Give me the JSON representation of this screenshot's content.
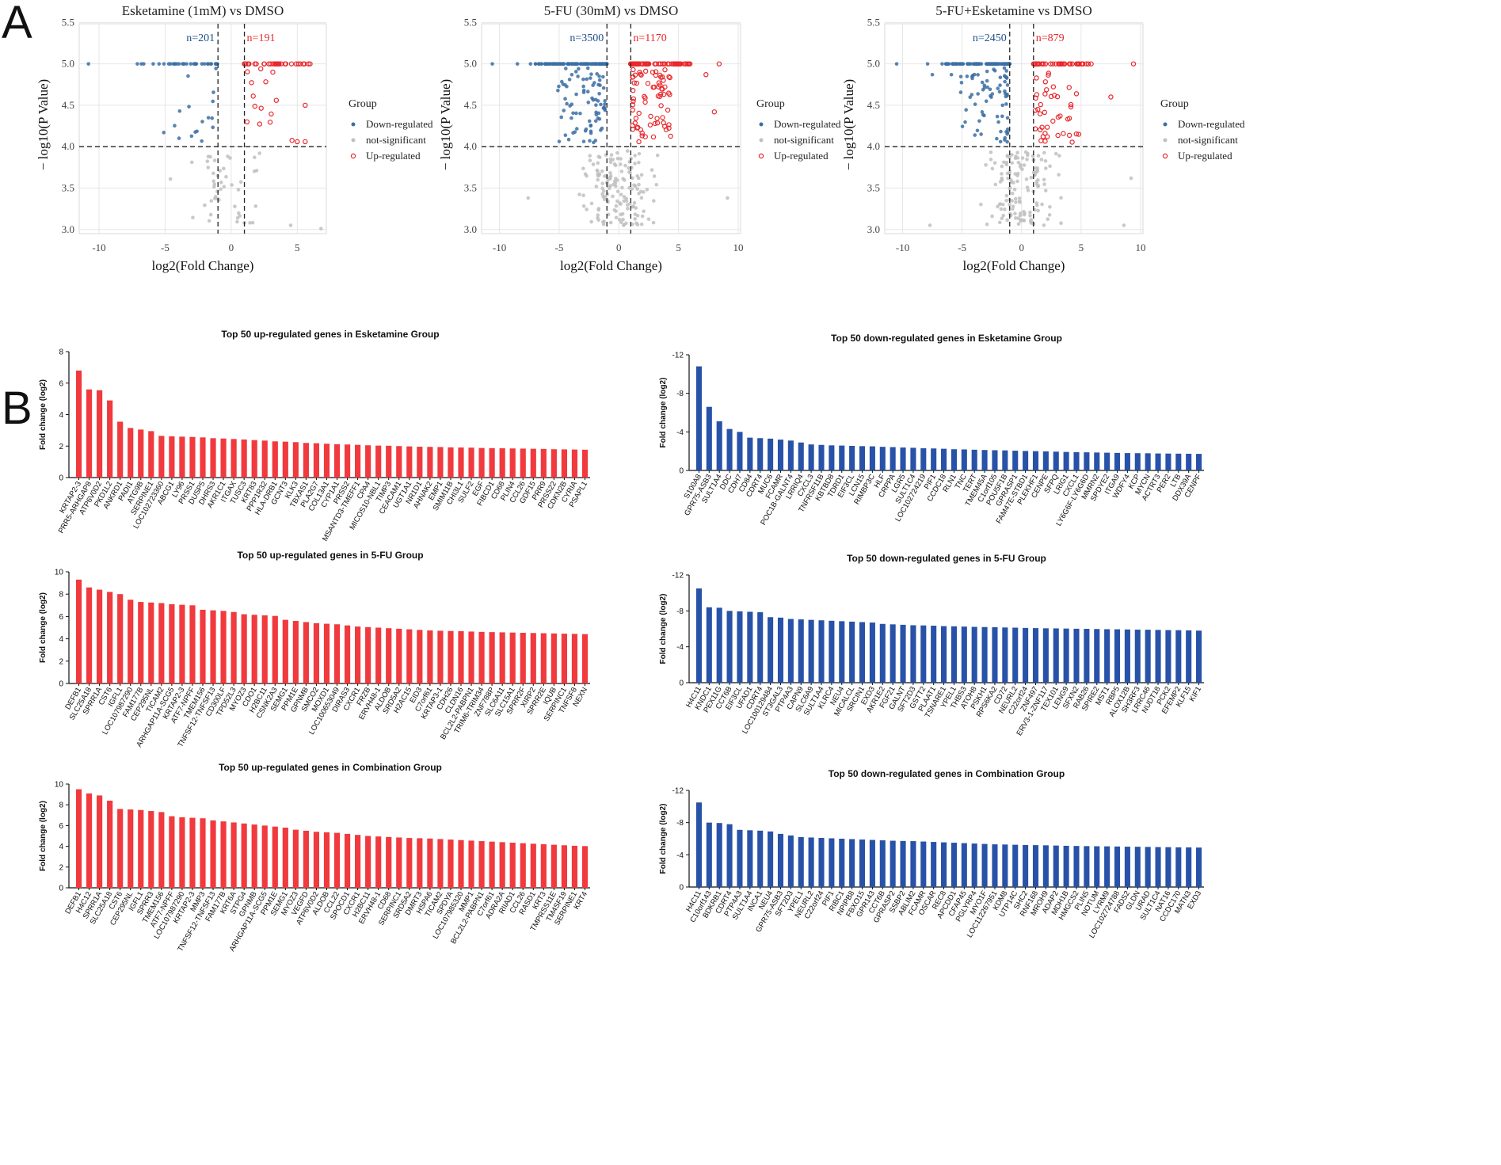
{
  "panels": {
    "a_label": "A",
    "b_label": "B"
  },
  "legend": {
    "title": "Group",
    "down": "Down-regulated",
    "ns": "not-significant",
    "up": "Up-regulated"
  },
  "colors": {
    "down": "#3b6fa3",
    "ns": "#c0c0c0",
    "up": "#e8282c",
    "bar_up": "#f03a3e",
    "bar_down": "#2752a8"
  },
  "chart_data": [
    {
      "type": "scatter",
      "title": "Esketamine (1mM) vs DMSO",
      "xlabel": "log2(Fold Change)",
      "ylabel": "− log10(P Value)",
      "xlim": [
        -11.5,
        7.2
      ],
      "ylim": [
        2.95,
        5.58
      ],
      "xticks": [
        -10,
        -5,
        0,
        5
      ],
      "yticks": [
        3.0,
        3.5,
        4.0,
        4.5,
        5.0,
        5.5
      ],
      "fc_threshold": [
        -1,
        1
      ],
      "p_threshold": 4.0,
      "n_down_label": "n=201",
      "n_up_label": "n=191",
      "seed": 11,
      "down_tail": [
        [
          -10.8,
          5.0
        ],
        [
          -7.1,
          5.0
        ],
        [
          -5.9,
          5.0
        ],
        [
          -3.9,
          4.43
        ]
      ],
      "up_tail": [
        [
          5.6,
          4.5
        ],
        [
          5.0,
          4.06
        ],
        [
          5.6,
          4.06
        ],
        [
          3.4,
          5.0
        ]
      ],
      "ns_points": [
        [
          -4.6,
          3.61
        ],
        [
          6.8,
          3.01
        ],
        [
          4.5,
          3.05
        ]
      ],
      "n_draw": {
        "down_line": 32,
        "up_line": 34,
        "down_scatter": 16,
        "up_scatter": 14,
        "ns": 45
      }
    },
    {
      "type": "scatter",
      "title": "5-FU (30mM) vs DMSO",
      "xlabel": "log2(Fold Change)",
      "ylabel": "− log10(P Value)",
      "xlim": [
        -11.5,
        10.2
      ],
      "ylim": [
        2.95,
        5.58
      ],
      "xticks": [
        -10,
        -5,
        0,
        5,
        10
      ],
      "yticks": [
        3.0,
        3.5,
        4.0,
        4.5,
        5.0,
        5.5
      ],
      "fc_threshold": [
        -1,
        1
      ],
      "p_threshold": 4.0,
      "n_down_label": "n=3500",
      "n_up_label": "n=1170",
      "seed": 23,
      "down_tail": [
        [
          -10.6,
          5.0
        ],
        [
          -8.5,
          5.0
        ],
        [
          -7.4,
          5.0
        ]
      ],
      "up_tail": [
        [
          8.4,
          5.0
        ],
        [
          8.0,
          4.42
        ],
        [
          7.3,
          4.87
        ]
      ],
      "ns_points": [
        [
          9.1,
          3.38
        ],
        [
          -7.6,
          3.38
        ]
      ],
      "n_draw": {
        "down_line": 110,
        "up_line": 75,
        "down_scatter": 80,
        "up_scatter": 70,
        "ns": 150
      }
    },
    {
      "type": "scatter",
      "title": "5-FU+Esketamine vs DMSO",
      "xlabel": "log2(Fold Change)",
      "ylabel": "− log10(P Value)",
      "xlim": [
        -11.5,
        10.2
      ],
      "ylim": [
        2.95,
        5.58
      ],
      "xticks": [
        -10,
        -5,
        0,
        5,
        10
      ],
      "yticks": [
        3.0,
        3.5,
        4.0,
        4.5,
        5.0,
        5.5
      ],
      "fc_threshold": [
        -1,
        1
      ],
      "p_threshold": 4.0,
      "n_down_label": "n=2450",
      "n_up_label": "n=879",
      "seed": 37,
      "down_tail": [
        [
          -10.5,
          5.0
        ],
        [
          -7.9,
          5.0
        ],
        [
          -7.5,
          4.87
        ],
        [
          -5.9,
          4.87
        ]
      ],
      "up_tail": [
        [
          9.4,
          5.0
        ],
        [
          7.5,
          4.6
        ],
        [
          4.8,
          4.15
        ]
      ],
      "ns_points": [
        [
          9.2,
          3.62
        ],
        [
          8.6,
          3.05
        ],
        [
          -7.7,
          3.05
        ]
      ],
      "n_draw": {
        "down_line": 100,
        "up_line": 50,
        "down_scatter": 70,
        "up_scatter": 40,
        "ns": 140
      }
    },
    {
      "type": "bar",
      "direction": "up",
      "title": "Top 50 up-regulated genes in Esketamine Group",
      "ylabel": "Fold change (log2)",
      "ylim": [
        0,
        8
      ],
      "yticks": [
        0,
        2,
        4,
        6,
        8
      ],
      "tick_labels": [
        "0",
        "2",
        "4",
        "6",
        "8"
      ],
      "categories": [
        "KRTAP2-3",
        "PRR5-ARHGAP8",
        "ATP6V0D2",
        "PKD1L2",
        "ANKRD1",
        "PADI1",
        "ATG9B",
        "SERPINE1",
        "LOC102723360",
        "ABCG1",
        "LY96",
        "PRSS1",
        "DUSP5",
        "DHRS3",
        "AKR1C1",
        "ITGAX",
        "TUSC3",
        "KRT83",
        "PPP1R32",
        "HLA-DRB1",
        "GCNT3",
        "KLK3",
        "TBXAS1",
        "PLA2G7",
        "COL13A1",
        "CYP1A1",
        "PRSS2",
        "MSANTD3-TMEFF1",
        "CPA4",
        "MICOS10-NBL1",
        "TIMP3",
        "CEACAM1",
        "UGT1A1",
        "NR1D1",
        "AHNAK2",
        "EMP1",
        "SMIM11B",
        "CHI3L1",
        "SULF2",
        "EGF",
        "FIBCD1",
        "CD68",
        "PLIN4",
        "CCL26",
        "GDF15",
        "PRR9",
        "PRSS22",
        "CDKN2B",
        "CYRIA",
        "PSAPL1"
      ],
      "values": [
        6.8,
        5.6,
        5.55,
        4.9,
        3.55,
        3.15,
        3.05,
        2.95,
        2.65,
        2.62,
        2.6,
        2.58,
        2.55,
        2.5,
        2.48,
        2.45,
        2.42,
        2.38,
        2.35,
        2.3,
        2.28,
        2.25,
        2.2,
        2.18,
        2.15,
        2.12,
        2.1,
        2.08,
        2.05,
        2.03,
        2.02,
        2.0,
        1.98,
        1.96,
        1.95,
        1.94,
        1.92,
        1.91,
        1.9,
        1.88,
        1.87,
        1.86,
        1.85,
        1.84,
        1.83,
        1.82,
        1.8,
        1.79,
        1.78,
        1.77
      ]
    },
    {
      "type": "bar",
      "direction": "down",
      "title": "Top 50 down-regulated genes in Esketamine Group",
      "ylabel": "Fold change (log2)",
      "ylim": [
        0,
        -12
      ],
      "yticks": [
        0,
        -4,
        -8,
        -12
      ],
      "tick_labels": [
        "0",
        "-4",
        "-8",
        "-12"
      ],
      "categories": [
        "S100A8",
        "GPR75-ASB3",
        "SULT1A4",
        "DDC",
        "CDH7",
        "CD84",
        "CDRT4",
        "MUC6",
        "FCAMR",
        "POC1B-GALNT4",
        "LRRIQ4",
        "CXCL3",
        "TNFRSF11B",
        "KBTBD8",
        "TDRD1",
        "EIF3CL",
        "LCN15",
        "RIMBP3C",
        "HLF",
        "CRPPA",
        "LGR5",
        "SULT1C4",
        "LOC102724219",
        "PIF1",
        "CCDC18",
        "RLN1",
        "TNC",
        "TERT",
        "TMEM45A",
        "C1orf105",
        "POU5F1B",
        "GPRASP1",
        "FAM47E-STBD1",
        "PLEKHF1",
        "CENPE",
        "SFPQ",
        "LRIG1",
        "CXCL1",
        "LY6G6F-LY6G6D",
        "MMRN2",
        "SPDYE2",
        "ITGA9",
        "WDFY4",
        "KCP",
        "MYCN",
        "ACTRT3",
        "PER2",
        "LTB",
        "DDX39A",
        "CENPF"
      ],
      "values": [
        -10.8,
        -6.6,
        -5.1,
        -4.3,
        -4.0,
        -3.4,
        -3.35,
        -3.3,
        -3.2,
        -3.1,
        -2.9,
        -2.7,
        -2.65,
        -2.6,
        -2.58,
        -2.55,
        -2.52,
        -2.5,
        -2.45,
        -2.42,
        -2.38,
        -2.35,
        -2.3,
        -2.28,
        -2.25,
        -2.2,
        -2.18,
        -2.15,
        -2.12,
        -2.1,
        -2.08,
        -2.05,
        -2.02,
        -2.0,
        -1.98,
        -1.95,
        -1.92,
        -1.9,
        -1.88,
        -1.86,
        -1.84,
        -1.82,
        -1.8,
        -1.79,
        -1.78,
        -1.76,
        -1.75,
        -1.74,
        -1.73,
        -1.72
      ]
    },
    {
      "type": "bar",
      "direction": "up",
      "title": "Top 50 up-regulated genes in 5-FU Group",
      "ylabel": "Fold change (log2)",
      "ylim": [
        0,
        10
      ],
      "yticks": [
        0,
        2,
        4,
        6,
        8,
        10
      ],
      "tick_labels": [
        "0",
        "2",
        "4",
        "6",
        "8",
        "10"
      ],
      "categories": [
        "DEFB1",
        "SLC25A18",
        "SPRR1A",
        "CST6",
        "IGFL1",
        "LOC107987290",
        "FAM177B",
        "CEP295NL",
        "TICAM2",
        "ARHGAP11A-SCG5",
        "KRTAP2-3",
        "ATF7-NPFF",
        "TMEM156",
        "TNFSF12-TNFSF13",
        "CD300LF",
        "TPD52L3",
        "MYOZ3",
        "CDO1",
        "H2BC11",
        "CSNK2A3",
        "SEMG1",
        "PPM1E",
        "GPNMB",
        "SMCO2",
        "MOXD1",
        "LOC100653049",
        "DIRAS3",
        "CXCR1",
        "FRZB",
        "ERVH48-1",
        "ALDOB",
        "SRD5A2",
        "H2AC15",
        "EID3",
        "C7orf61",
        "KRTAP3-1",
        "CDH26",
        "CLDN16",
        "BCL2L2-PABPN1",
        "TRIM6-TRIM34",
        "ZNF788P",
        "SLC6A11",
        "SLC15A1",
        "SPRR2F",
        "XIRP2",
        "SPRR2E",
        "IQUB",
        "SERPINC1",
        "TNFSF8",
        "NEXN"
      ],
      "values": [
        9.3,
        8.6,
        8.4,
        8.2,
        8.0,
        7.5,
        7.3,
        7.25,
        7.2,
        7.1,
        7.05,
        7.0,
        6.6,
        6.55,
        6.5,
        6.4,
        6.2,
        6.15,
        6.1,
        6.05,
        5.7,
        5.6,
        5.5,
        5.4,
        5.35,
        5.3,
        5.2,
        5.1,
        5.05,
        5.0,
        4.95,
        4.9,
        4.85,
        4.8,
        4.75,
        4.72,
        4.7,
        4.68,
        4.65,
        4.62,
        4.6,
        4.58,
        4.56,
        4.54,
        4.52,
        4.5,
        4.48,
        4.46,
        4.44,
        4.42
      ]
    },
    {
      "type": "bar",
      "direction": "down",
      "title": "Top 50 down-regulated genes in 5-FU Group",
      "ylabel": "Fold change (log2)",
      "ylim": [
        0,
        -12
      ],
      "yticks": [
        0,
        -4,
        -8,
        -12
      ],
      "tick_labels": [
        "0",
        "-4",
        "-8",
        "-12"
      ],
      "categories": [
        "H4C11",
        "KNDC1",
        "PEX11G",
        "CCT6B",
        "EIF3CL",
        "UFAD1",
        "CDRT4",
        "LOC100129484",
        "ST3GAL3",
        "PTP4A3",
        "CAPN9",
        "SLC6A9",
        "SULT1A4",
        "KLRC4",
        "NEU4",
        "MICALCL",
        "SRCIN1",
        "EXD3",
        "AKR1E2",
        "FGF21",
        "GALNT",
        "SFT2D3",
        "GSTT2",
        "PLAAT1",
        "TSNARE1",
        "YPEL1",
        "THBS3",
        "ATOH8",
        "PSKH1",
        "RPS6KA2",
        "CD72",
        "NEURL2",
        "C22orf24",
        "ZNF497",
        "ERV3-1-ZNF117",
        "TEX101",
        "LENG9",
        "SFXN2",
        "RAB26",
        "SPIRE2",
        "MST1",
        "RBP5",
        "ALOX12B",
        "SH3RF3",
        "LRRC46",
        "NUDT18",
        "PCK2",
        "EFEMP2",
        "KLF15",
        "KIF1"
      ],
      "values": [
        -10.5,
        -8.4,
        -8.35,
        -8.0,
        -7.95,
        -7.9,
        -7.85,
        -7.3,
        -7.25,
        -7.1,
        -7.05,
        -7.0,
        -6.95,
        -6.9,
        -6.85,
        -6.8,
        -6.75,
        -6.7,
        -6.55,
        -6.5,
        -6.45,
        -6.4,
        -6.38,
        -6.35,
        -6.3,
        -6.28,
        -6.25,
        -6.22,
        -6.2,
        -6.18,
        -6.15,
        -6.13,
        -6.1,
        -6.08,
        -6.06,
        -6.05,
        -6.03,
        -6.01,
        -6.0,
        -5.98,
        -5.96,
        -5.95,
        -5.93,
        -5.91,
        -5.9,
        -5.88,
        -5.86,
        -5.85,
        -5.83,
        -5.8
      ]
    },
    {
      "type": "bar",
      "direction": "up",
      "title": "Top 50 up-regulated genes in Combination Group",
      "ylabel": "Fold change (log2)",
      "ylim": [
        0,
        10
      ],
      "yticks": [
        0,
        2,
        4,
        6,
        8,
        10
      ],
      "tick_labels": [
        "0",
        "2",
        "4",
        "6",
        "8",
        "10"
      ],
      "categories": [
        "DEFB1",
        "H4C12",
        "SPRR1A",
        "SLC25A18",
        "CST6",
        "CEP295NL",
        "IGFL1",
        "SPRR3",
        "TMEM156",
        "ATF7-NPFF",
        "LOC107987290",
        "KRTAP2-3",
        "MMP3",
        "TNFSF12-TNFSF13",
        "FAM177B",
        "KRT6A",
        "STPG4",
        "GPNMB",
        "ARHGAP11A-SCG5",
        "PPM1E",
        "SEMG1",
        "MYOZ3",
        "VEGFD",
        "ATP6V0D2",
        "ALDOB",
        "CCL22",
        "SPOCD1",
        "CXCR1",
        "H2BC11",
        "ERVH48-1",
        "CD68",
        "SERPINC1",
        "SRD5A2",
        "DMRT3",
        "HSPA6",
        "TICAM2",
        "SPDYA",
        "LOC107985320",
        "MMP1",
        "BCL2L2-PABPN1",
        "C7orf61",
        "ADRA2A",
        "RIIAD1",
        "CCL26",
        "RASD1",
        "KRT3",
        "TMPRSS11E",
        "TM4SF19",
        "SERPINE1",
        "KRT4"
      ],
      "values": [
        9.5,
        9.1,
        8.9,
        8.4,
        7.6,
        7.55,
        7.5,
        7.4,
        7.3,
        6.9,
        6.8,
        6.75,
        6.7,
        6.5,
        6.4,
        6.3,
        6.2,
        6.1,
        6.0,
        5.9,
        5.8,
        5.6,
        5.5,
        5.4,
        5.35,
        5.3,
        5.2,
        5.1,
        5.0,
        4.95,
        4.9,
        4.85,
        4.8,
        4.78,
        4.75,
        4.7,
        4.65,
        4.6,
        4.55,
        4.5,
        4.45,
        4.4,
        4.35,
        4.3,
        4.25,
        4.2,
        4.15,
        4.1,
        4.05,
        4.02
      ]
    },
    {
      "type": "bar",
      "direction": "down",
      "title": "Top 50 down-regulated genes in Combination Group",
      "ylabel": "Fold change (log2)",
      "ylim": [
        0,
        -12
      ],
      "yticks": [
        0,
        -4,
        -8,
        -12
      ],
      "tick_labels": [
        "0",
        "-4",
        "-8",
        "-12"
      ],
      "categories": [
        "H4C11",
        "C10orf143",
        "BDKRB1",
        "CDRT4",
        "PTP4A3",
        "SULT1A4",
        "INCA1",
        "NEU4",
        "GPR75-ASB3",
        "SFT2D3",
        "YPEL1",
        "NEURL2",
        "C22orf24",
        "PIF1",
        "RIBC1",
        "NPIPB8",
        "FBXO15",
        "GPR143",
        "CCT6B",
        "GPRASP2",
        "SSBP2",
        "ABLIM2",
        "FCAMR",
        "OSCAR",
        "REC8",
        "APCDD1",
        "CFAP45",
        "PGLYRP4",
        "MYO1F",
        "LOC112267951",
        "KDM8",
        "UTP14C",
        "SHC2",
        "RNF168",
        "MROH9",
        "ADAP2",
        "MDH1B",
        "HMGCS2",
        "PLIN5",
        "NOTUM",
        "LYRM9",
        "LOC102724788",
        "FADS2",
        "GLDN",
        "URAD",
        "SULT1C4",
        "NAT16",
        "CCDC170",
        "MATN3",
        "EXD3"
      ],
      "values": [
        -10.5,
        -8.0,
        -7.95,
        -7.8,
        -7.1,
        -7.05,
        -7.0,
        -6.9,
        -6.6,
        -6.4,
        -6.2,
        -6.15,
        -6.1,
        -6.05,
        -6.0,
        -5.95,
        -5.9,
        -5.85,
        -5.8,
        -5.75,
        -5.72,
        -5.7,
        -5.65,
        -5.6,
        -5.55,
        -5.5,
        -5.45,
        -5.4,
        -5.35,
        -5.3,
        -5.28,
        -5.25,
        -5.22,
        -5.2,
        -5.18,
        -5.15,
        -5.12,
        -5.1,
        -5.08,
        -5.06,
        -5.05,
        -5.03,
        -5.01,
        -5.0,
        -4.98,
        -4.96,
        -4.95,
        -4.93,
        -4.92,
        -4.9
      ]
    }
  ]
}
